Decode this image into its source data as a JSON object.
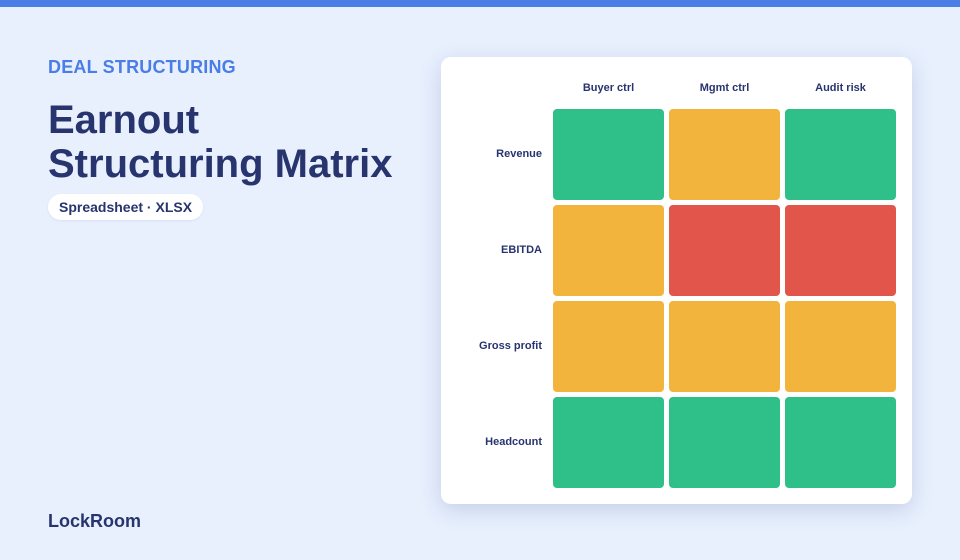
{
  "header": {
    "eyebrow": "DEAL STRUCTURING",
    "title_line1": "Earnout",
    "title_line2": "Structuring Matrix",
    "file_type": "Spreadsheet · XLSX"
  },
  "footer": {
    "brand": "LockRoom"
  },
  "colors": {
    "green": "#2ec088",
    "amber": "#f2b43c",
    "red": "#e2554b"
  },
  "matrix": {
    "columns": [
      "Buyer ctrl",
      "Mgmt ctrl",
      "Audit risk"
    ],
    "rows": [
      {
        "label": "Revenue",
        "levels": [
          "green",
          "amber",
          "green"
        ]
      },
      {
        "label": "EBITDA",
        "levels": [
          "amber",
          "red",
          "red"
        ]
      },
      {
        "label": "Gross profit",
        "levels": [
          "amber",
          "amber",
          "amber"
        ]
      },
      {
        "label": "Headcount",
        "levels": [
          "green",
          "green",
          "green"
        ]
      }
    ]
  }
}
